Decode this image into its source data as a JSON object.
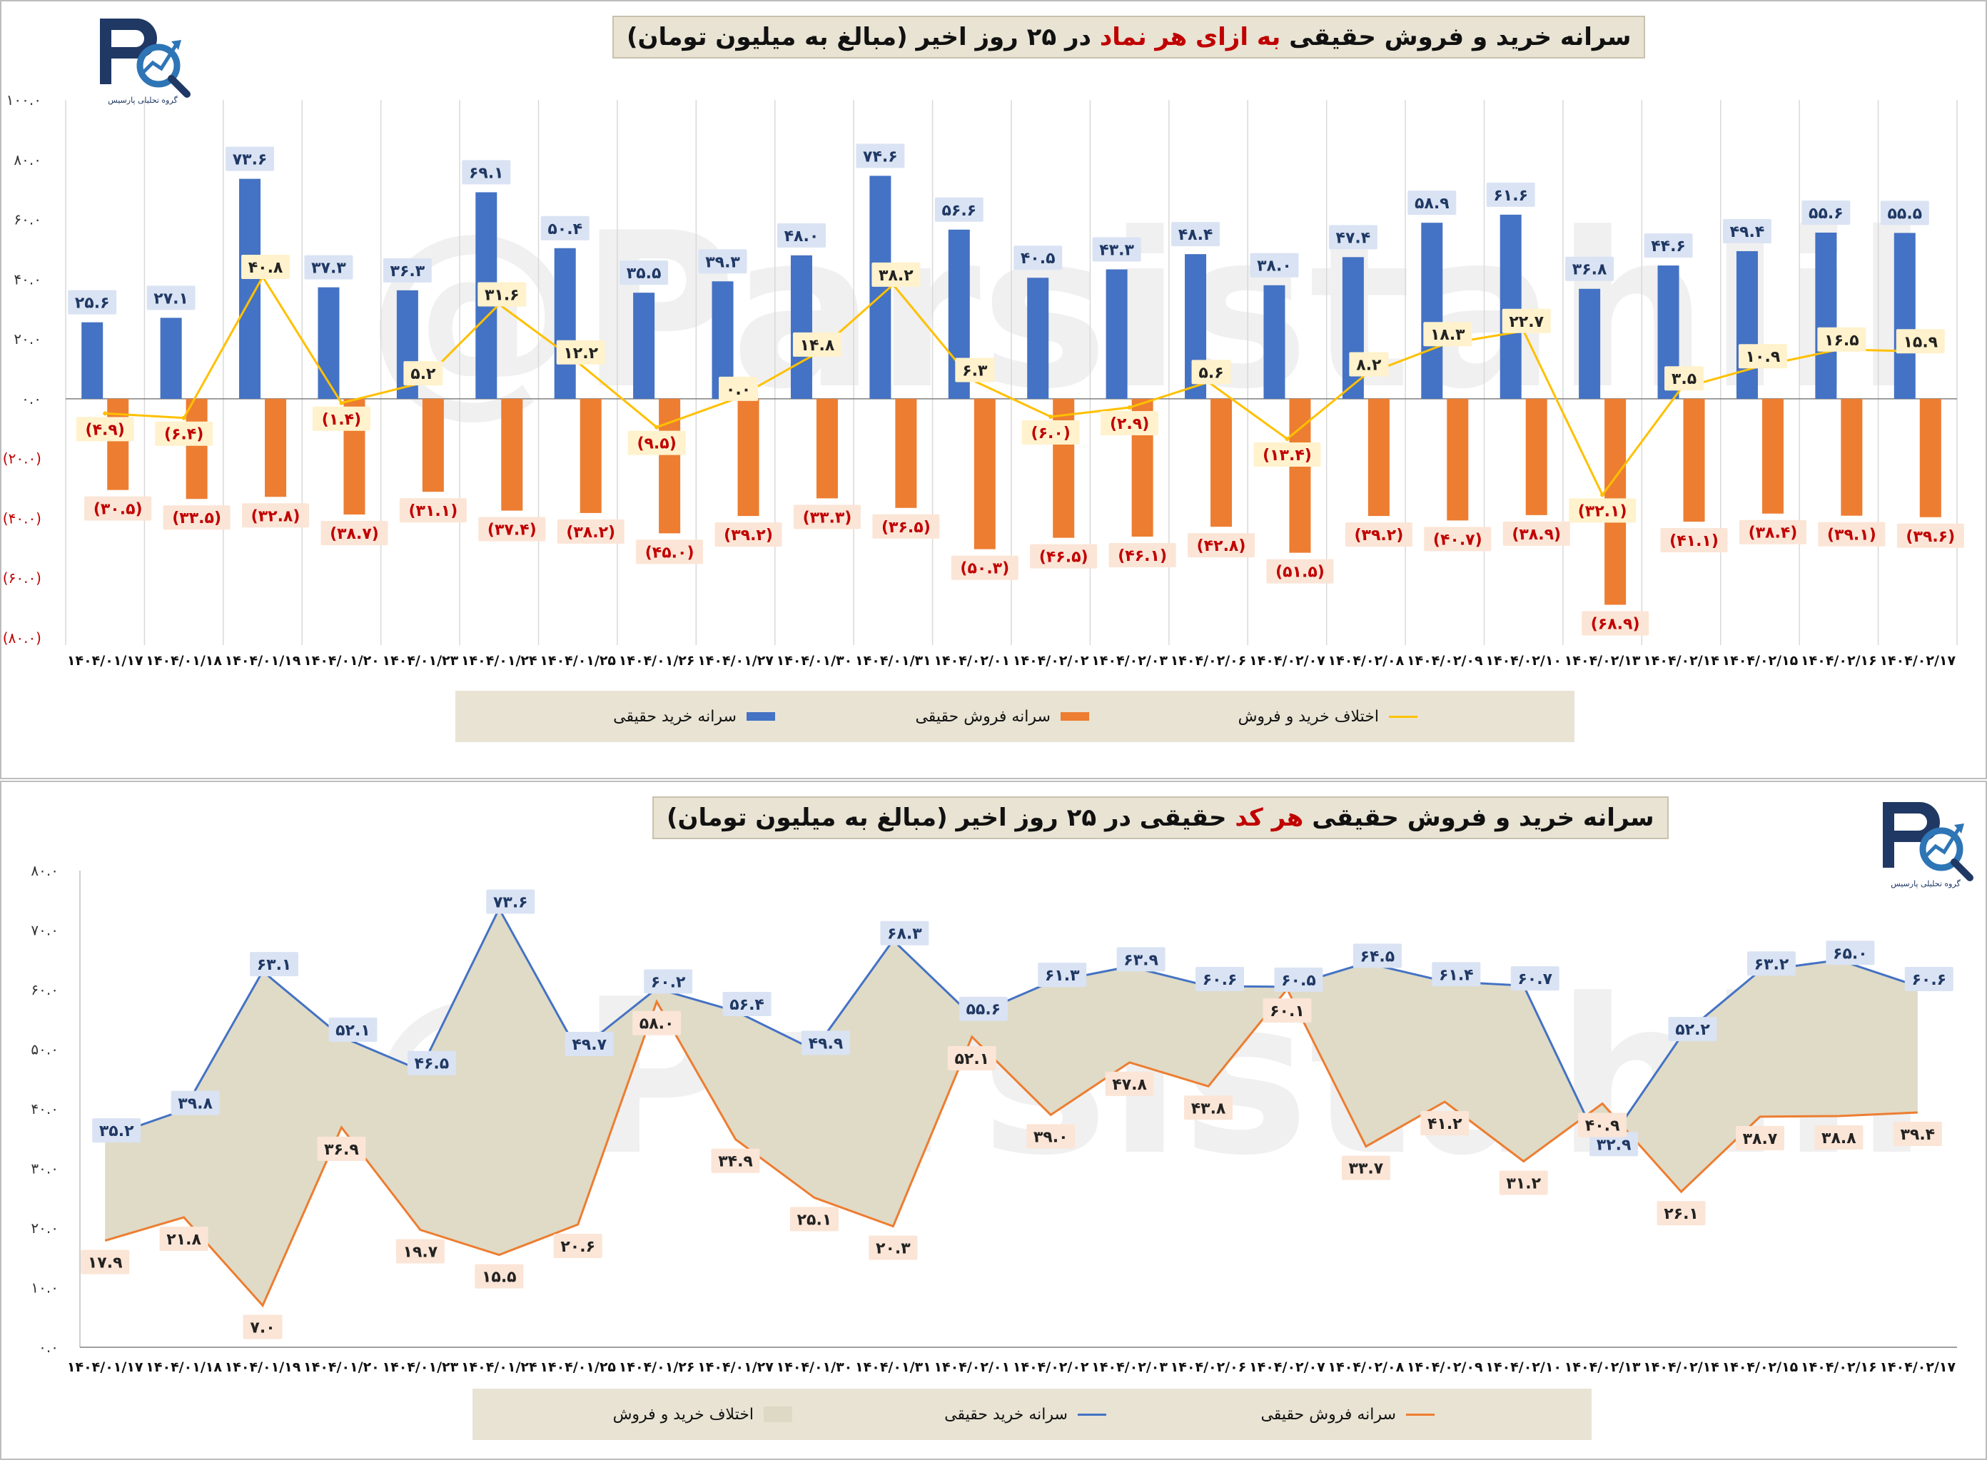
{
  "dates": [
    "۱۴۰۴/۰۱/۱۷",
    "۱۴۰۴/۰۱/۱۸",
    "۱۴۰۴/۰۱/۱۹",
    "۱۴۰۴/۰۱/۲۰",
    "۱۴۰۴/۰۱/۲۳",
    "۱۴۰۴/۰۱/۲۴",
    "۱۴۰۴/۰۱/۲۵",
    "۱۴۰۴/۰۱/۲۶",
    "۱۴۰۴/۰۱/۲۷",
    "۱۴۰۴/۰۱/۳۰",
    "۱۴۰۴/۰۱/۳۱",
    "۱۴۰۴/۰۲/۰۱",
    "۱۴۰۴/۰۲/۰۲",
    "۱۴۰۴/۰۲/۰۳",
    "۱۴۰۴/۰۲/۰۶",
    "۱۴۰۴/۰۲/۰۷",
    "۱۴۰۴/۰۲/۰۸",
    "۱۴۰۴/۰۲/۰۹",
    "۱۴۰۴/۰۲/۱۰",
    "۱۴۰۴/۰۲/۱۳",
    "۱۴۰۴/۰۲/۱۴",
    "۱۴۰۴/۰۲/۱۵",
    "۱۴۰۴/۰۲/۱۶",
    "۱۴۰۴/۰۲/۱۷"
  ],
  "logo": {
    "caption": "گروه تحلیلی پارسیس"
  },
  "watermark": "@Parsistahlil",
  "colors": {
    "buy": "#4472c4",
    "sell": "#ed7d31",
    "diff": "#ffc000",
    "diffArea": "#ddd9c4",
    "label_red": "#c00000"
  },
  "chart_data": [
    {
      "type": "bar",
      "title_parts": [
        "سرانه خرید و فروش حقیقی ",
        "به ازای هر نماد",
        " در ۲۵ روز اخیر (مبالغ به میلیون تومان)"
      ],
      "ylim": [
        -80,
        100
      ],
      "yticks": [
        "۱۰۰.۰",
        "۸۰.۰",
        "۶۰.۰",
        "۴۰.۰",
        "۲۰.۰",
        "۰.۰",
        "(۲۰.۰)",
        "(۴۰.۰)",
        "(۶۰.۰)",
        "(۸۰.۰)"
      ],
      "series": [
        {
          "name": "سرانه خرید حقیقی",
          "kind": "bar",
          "values": [
            25.6,
            27.1,
            73.6,
            37.3,
            36.3,
            69.1,
            50.4,
            35.5,
            39.3,
            48.0,
            74.6,
            56.6,
            40.5,
            43.3,
            48.4,
            38.0,
            47.4,
            58.9,
            61.6,
            36.8,
            44.6,
            49.4,
            55.6,
            55.5
          ],
          "labels": [
            "۲۵.۶",
            "۲۷.۱",
            "۷۳.۶",
            "۳۷.۳",
            "۳۶.۳",
            "۶۹.۱",
            "۵۰.۴",
            "۳۵.۵",
            "۳۹.۳",
            "۴۸.۰",
            "۷۴.۶",
            "۵۶.۶",
            "۴۰.۵",
            "۴۳.۳",
            "۴۸.۴",
            "۳۸.۰",
            "۴۷.۴",
            "۵۸.۹",
            "۶۱.۶",
            "۳۶.۸",
            "۴۴.۶",
            "۴۹.۴",
            "۵۵.۶",
            "۵۵.۵"
          ]
        },
        {
          "name": "سرانه فروش حقیقی",
          "kind": "bar",
          "values": [
            -30.5,
            -33.5,
            -32.8,
            -38.7,
            -31.1,
            -37.4,
            -38.2,
            -45.0,
            -39.2,
            -33.3,
            -36.5,
            -50.3,
            -46.5,
            -46.1,
            -42.8,
            -51.5,
            -39.2,
            -40.7,
            -38.9,
            -68.9,
            -41.1,
            -38.4,
            -39.1,
            -39.6
          ],
          "labels": [
            "(۳۰.۵)",
            "(۳۳.۵)",
            "(۳۲.۸)",
            "(۳۸.۷)",
            "(۳۱.۱)",
            "(۳۷.۴)",
            "(۳۸.۲)",
            "(۴۵.۰)",
            "(۳۹.۲)",
            "(۳۳.۳)",
            "(۳۶.۵)",
            "(۵۰.۳)",
            "(۴۶.۵)",
            "(۴۶.۱)",
            "(۴۲.۸)",
            "(۵۱.۵)",
            "(۳۹.۲)",
            "(۴۰.۷)",
            "(۳۸.۹)",
            "(۶۸.۹)",
            "(۴۱.۱)",
            "(۳۸.۴)",
            "(۳۹.۱)",
            "(۳۹.۶)"
          ]
        },
        {
          "name": "اختلاف خرید و فروش",
          "kind": "line",
          "values": [
            -4.9,
            -6.4,
            40.8,
            -1.4,
            5.2,
            31.6,
            12.2,
            -9.5,
            0.0,
            14.8,
            38.2,
            6.3,
            -6.0,
            -2.9,
            5.6,
            -13.4,
            8.2,
            18.3,
            22.7,
            -32.1,
            3.5,
            10.9,
            16.5,
            15.9
          ],
          "labels": [
            "(۴.۹)",
            "(۶.۴)",
            "۴۰.۸",
            "(۱.۴)",
            "۵.۲",
            "۳۱.۶",
            "۱۲.۲",
            "(۹.۵)",
            "۰.۰",
            "۱۴.۸",
            "۳۸.۲",
            "۶.۳",
            "(۶.۰)",
            "(۲.۹)",
            "۵.۶",
            "(۱۳.۴)",
            "۸.۲",
            "۱۸.۳",
            "۲۲.۷",
            "(۳۲.۱)",
            "۳.۵",
            "۱۰.۹",
            "۱۶.۵",
            "۱۵.۹"
          ]
        }
      ],
      "legend": [
        "سرانه خرید حقیقی",
        "سرانه فروش حقیقی",
        "اختلاف خرید و فروش"
      ]
    },
    {
      "type": "area",
      "title_parts": [
        "سرانه خرید و فروش حقیقی ",
        "هر کد",
        " حقیقی در ۲۵ روز اخیر (مبالغ به میلیون تومان)"
      ],
      "ylim": [
        0,
        80
      ],
      "yticks": [
        "۸۰.۰",
        "۷۰.۰",
        "۶۰.۰",
        "۵۰.۰",
        "۴۰.۰",
        "۳۰.۰",
        "۲۰.۰",
        "۱۰.۰",
        "۰.۰"
      ],
      "series": [
        {
          "name": "سرانه خرید حقیقی",
          "kind": "line",
          "values": [
            35.2,
            39.8,
            63.1,
            52.1,
            46.5,
            73.6,
            49.7,
            60.2,
            56.4,
            49.9,
            68.3,
            55.6,
            61.3,
            63.9,
            60.6,
            60.5,
            64.5,
            61.4,
            60.7,
            32.9,
            52.2,
            63.2,
            65.0,
            60.6
          ],
          "labels": [
            "۳۵.۲",
            "۳۹.۸",
            "۶۳.۱",
            "۵۲.۱",
            "۴۶.۵",
            "۷۳.۶",
            "۴۹.۷",
            "۶۰.۲",
            "۵۶.۴",
            "۴۹.۹",
            "۶۸.۳",
            "۵۵.۶",
            "۶۱.۳",
            "۶۳.۹",
            "۶۰.۶",
            "۶۰.۵",
            "۶۴.۵",
            "۶۱.۴",
            "۶۰.۷",
            "۳۲.۹",
            "۵۲.۲",
            "۶۳.۲",
            "۶۵.۰",
            "۶۰.۶"
          ]
        },
        {
          "name": "سرانه فروش حقیقی",
          "kind": "line",
          "values": [
            17.9,
            21.8,
            7.0,
            36.9,
            19.7,
            15.5,
            20.6,
            58.0,
            34.9,
            25.1,
            20.3,
            52.1,
            39.0,
            47.8,
            43.8,
            60.1,
            33.7,
            41.2,
            31.2,
            40.9,
            26.1,
            38.7,
            38.8,
            39.4
          ],
          "labels": [
            "۱۷.۹",
            "۲۱.۸",
            "۷.۰",
            "۳۶.۹",
            "۱۹.۷",
            "۱۵.۵",
            "۲۰.۶",
            "۵۸.۰",
            "۳۴.۹",
            "۲۵.۱",
            "۲۰.۳",
            "۵۲.۱",
            "۳۹.۰",
            "۴۷.۸",
            "۴۳.۸",
            "۶۰.۱",
            "۳۳.۷",
            "۴۱.۲",
            "۳۱.۲",
            "۴۰.۹",
            "۲۶.۱",
            "۳۸.۷",
            "۳۸.۸",
            "۳۹.۴"
          ]
        }
      ],
      "legend": [
        "اختلاف خرید و فروش",
        "سرانه خرید حقیقی",
        "سرانه فروش حقیقی"
      ]
    }
  ]
}
